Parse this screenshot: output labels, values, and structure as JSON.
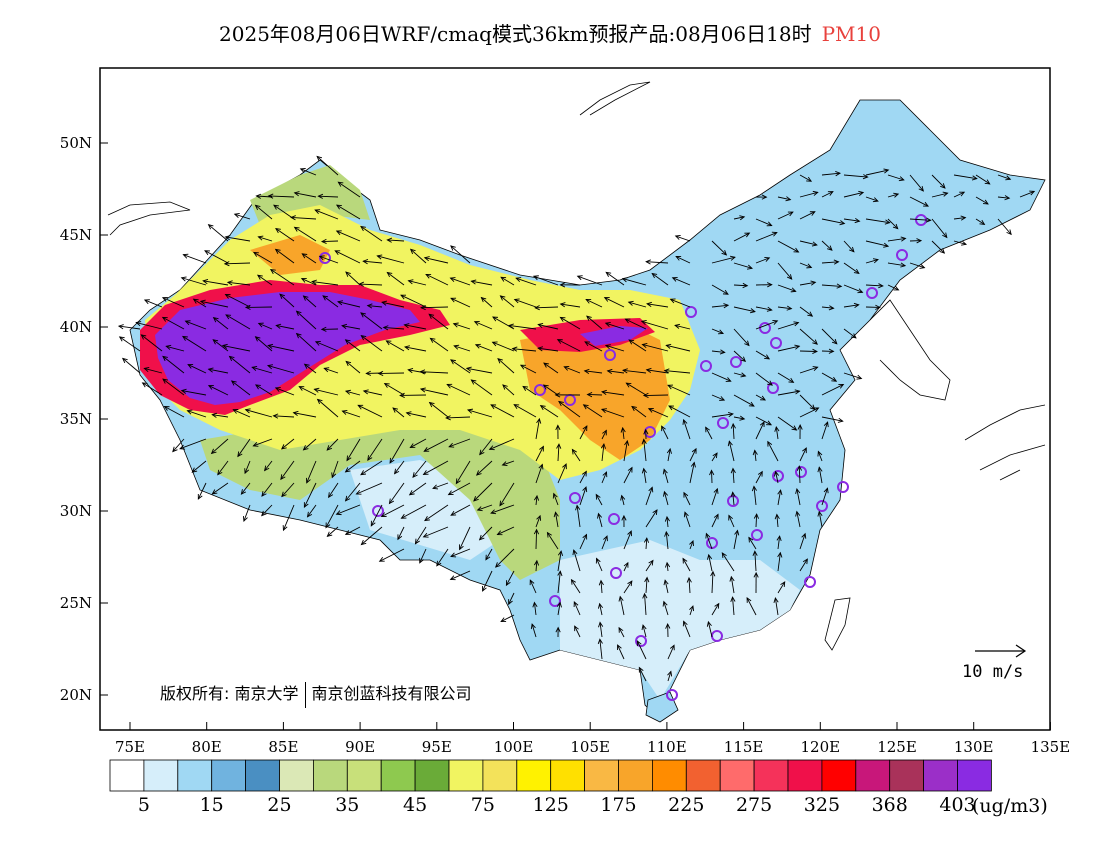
{
  "title": {
    "text": "2025年08月06日WRF/cmaq模式36km预报产品:08月06日18时",
    "pollutant": "PM10",
    "pollutant_color": "#e8413c"
  },
  "map": {
    "lon_ticks": [
      "75E",
      "80E",
      "85E",
      "90E",
      "95E",
      "100E",
      "105E",
      "110E",
      "115E",
      "120E",
      "125E",
      "130E",
      "135E"
    ],
    "lat_ticks": [
      "50N",
      "45N",
      "40N",
      "35N",
      "30N",
      "25N",
      "20N"
    ]
  },
  "copyright": {
    "prefix": "版权所有:",
    "org1": "南京大学",
    "org2": "南京创蓝科技有限公司"
  },
  "wind_reference": {
    "label": "10 m/s"
  },
  "legend": {
    "colors": [
      "#ffffff",
      "#d6eefa",
      "#a0d8f3",
      "#70b3df",
      "#4a8fc2",
      "#dbe8b6",
      "#b9d87c",
      "#c8e07a",
      "#8ec94f",
      "#6aab38",
      "#f1f461",
      "#f3e25a",
      "#fff200",
      "#ffe000",
      "#f9b844",
      "#f8a52a",
      "#ff8c00",
      "#f26130",
      "#ff6b6b",
      "#f5325a",
      "#f0104a",
      "#ff0000",
      "#c8177a",
      "#a9325a",
      "#9b2fc8",
      "#8a2be2"
    ],
    "labels": [
      "5",
      "15",
      "25",
      "35",
      "45",
      "75",
      "125",
      "175",
      "225",
      "275",
      "325",
      "368",
      "403"
    ],
    "unit": "(ug/m3)"
  }
}
